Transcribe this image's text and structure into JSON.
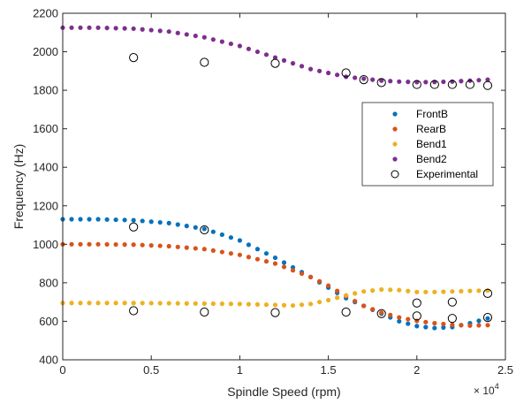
{
  "chart_data": {
    "type": "scatter",
    "xlabel": "Spindle Speed (rpm)",
    "ylabel": "Frequency (Hz)",
    "xlim": [
      0,
      25000
    ],
    "ylim": [
      400,
      2200
    ],
    "x_ticks": [
      0,
      5000,
      10000,
      15000,
      20000,
      25000
    ],
    "x_tick_labels": [
      "0",
      "0.5",
      "1",
      "1.5",
      "2",
      "2.5"
    ],
    "x_exponent_label": "× 10",
    "x_exponent_power": "4",
    "y_ticks": [
      400,
      600,
      800,
      1000,
      1200,
      1400,
      1600,
      1800,
      2000,
      2200
    ],
    "y_tick_labels": [
      "400",
      "600",
      "800",
      "1000",
      "1200",
      "1400",
      "1600",
      "1800",
      "2000",
      "2200"
    ],
    "grid": false,
    "legend_position": "right",
    "series": [
      {
        "name": "FrontB",
        "color": "#0072BD",
        "marker": "dot",
        "curve": [
          [
            0,
            1130
          ],
          [
            2000,
            1130
          ],
          [
            4000,
            1125
          ],
          [
            6000,
            1110
          ],
          [
            8000,
            1080
          ],
          [
            10000,
            1020
          ],
          [
            12000,
            930
          ],
          [
            14000,
            830
          ],
          [
            16000,
            720
          ],
          [
            18000,
            640
          ],
          [
            19000,
            600
          ],
          [
            20000,
            575
          ],
          [
            21000,
            565
          ],
          [
            22000,
            570
          ],
          [
            23000,
            590
          ],
          [
            24000,
            615
          ]
        ]
      },
      {
        "name": "RearB",
        "color": "#D95319",
        "marker": "dot",
        "curve": [
          [
            0,
            1000
          ],
          [
            2000,
            1000
          ],
          [
            4000,
            998
          ],
          [
            6000,
            990
          ],
          [
            8000,
            975
          ],
          [
            10000,
            945
          ],
          [
            12000,
            900
          ],
          [
            14000,
            830
          ],
          [
            15000,
            785
          ],
          [
            16000,
            730
          ],
          [
            17000,
            680
          ],
          [
            18000,
            645
          ],
          [
            19000,
            620
          ],
          [
            20000,
            602
          ],
          [
            21000,
            590
          ],
          [
            22000,
            582
          ],
          [
            23000,
            578
          ],
          [
            24000,
            580
          ]
        ]
      },
      {
        "name": "Bend1",
        "color": "#EDB120",
        "marker": "dot",
        "curve": [
          [
            0,
            695
          ],
          [
            4000,
            695
          ],
          [
            8000,
            692
          ],
          [
            10000,
            690
          ],
          [
            12000,
            685
          ],
          [
            13000,
            682
          ],
          [
            14000,
            690
          ],
          [
            15000,
            710
          ],
          [
            16000,
            735
          ],
          [
            17000,
            755
          ],
          [
            18000,
            765
          ],
          [
            19000,
            762
          ],
          [
            20000,
            752
          ],
          [
            21000,
            752
          ],
          [
            22000,
            755
          ],
          [
            23000,
            758
          ],
          [
            24000,
            760
          ]
        ]
      },
      {
        "name": "Bend2",
        "color": "#7E2F8E",
        "marker": "dot",
        "curve": [
          [
            0,
            2125
          ],
          [
            2000,
            2125
          ],
          [
            4000,
            2120
          ],
          [
            6000,
            2105
          ],
          [
            8000,
            2075
          ],
          [
            10000,
            2030
          ],
          [
            12000,
            1970
          ],
          [
            14000,
            1910
          ],
          [
            16000,
            1870
          ],
          [
            18000,
            1850
          ],
          [
            19000,
            1845
          ],
          [
            20000,
            1842
          ],
          [
            21000,
            1843
          ],
          [
            22000,
            1845
          ],
          [
            23000,
            1850
          ],
          [
            24000,
            1855
          ]
        ]
      },
      {
        "name": "Experimental",
        "color": "#000000",
        "marker": "open-circle",
        "points": [
          [
            4000,
            1970
          ],
          [
            8000,
            1945
          ],
          [
            12000,
            1940
          ],
          [
            16000,
            1890
          ],
          [
            17000,
            1855
          ],
          [
            18000,
            1840
          ],
          [
            20000,
            1830
          ],
          [
            21000,
            1830
          ],
          [
            22000,
            1830
          ],
          [
            23000,
            1830
          ],
          [
            24000,
            1825
          ],
          [
            4000,
            1090
          ],
          [
            8000,
            1075
          ],
          [
            20000,
            695
          ],
          [
            22000,
            700
          ],
          [
            24000,
            745
          ],
          [
            4000,
            655
          ],
          [
            8000,
            648
          ],
          [
            12000,
            645
          ],
          [
            16000,
            648
          ],
          [
            18000,
            640
          ],
          [
            20000,
            628
          ],
          [
            22000,
            615
          ],
          [
            24000,
            620
          ]
        ]
      }
    ]
  }
}
